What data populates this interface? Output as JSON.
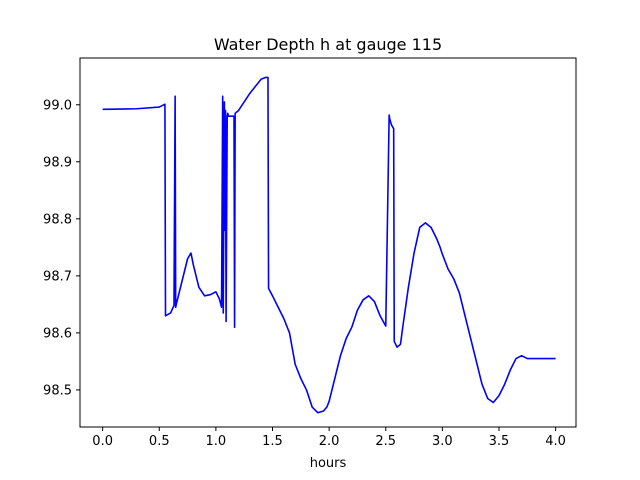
{
  "chart_data": {
    "type": "line",
    "title": "Water Depth h at gauge 115",
    "xlabel": "hours",
    "ylabel": "",
    "xlim": [
      -0.2,
      4.18
    ],
    "ylim": [
      98.435,
      99.082
    ],
    "x_ticks": [
      0.0,
      0.5,
      1.0,
      1.5,
      2.0,
      2.5,
      3.0,
      3.5,
      4.0
    ],
    "x_tick_labels": [
      "0.0",
      "0.5",
      "1.0",
      "1.5",
      "2.0",
      "2.5",
      "3.0",
      "3.5",
      "4.0"
    ],
    "y_ticks": [
      98.5,
      98.6,
      98.7,
      98.8,
      98.9,
      99.0
    ],
    "y_tick_labels": [
      "98.5",
      "98.6",
      "98.7",
      "98.8",
      "98.9",
      "99.0"
    ],
    "grid": false,
    "series": [
      {
        "color": "#0000ff",
        "x": [
          0.0,
          0.3,
          0.5,
          0.55,
          0.555,
          0.6,
          0.63,
          0.64,
          0.645,
          0.65,
          0.7,
          0.75,
          0.78,
          0.8,
          0.85,
          0.9,
          0.95,
          1.0,
          1.03,
          1.05,
          1.06,
          1.065,
          1.075,
          1.08,
          1.085,
          1.09,
          1.1,
          1.105,
          1.11,
          1.13,
          1.16,
          1.165,
          1.17,
          1.2,
          1.3,
          1.4,
          1.44,
          1.46,
          1.465,
          1.5,
          1.55,
          1.6,
          1.65,
          1.7,
          1.75,
          1.8,
          1.85,
          1.9,
          1.95,
          1.98,
          2.0,
          2.05,
          2.1,
          2.15,
          2.2,
          2.25,
          2.3,
          2.35,
          2.4,
          2.45,
          2.5,
          2.53,
          2.535,
          2.55,
          2.57,
          2.575,
          2.6,
          2.63,
          2.65,
          2.7,
          2.75,
          2.8,
          2.85,
          2.9,
          2.95,
          2.98,
          3.0,
          3.05,
          3.1,
          3.15,
          3.2,
          3.25,
          3.3,
          3.35,
          3.4,
          3.45,
          3.5,
          3.55,
          3.6,
          3.65,
          3.7,
          3.75,
          3.8,
          3.85,
          3.9,
          3.95,
          3.98,
          4.0
        ],
        "y": [
          98.992,
          98.993,
          98.996,
          99.001,
          98.63,
          98.635,
          98.648,
          99.015,
          98.645,
          98.65,
          98.69,
          98.73,
          98.74,
          98.72,
          98.68,
          98.665,
          98.667,
          98.672,
          98.66,
          98.645,
          99.015,
          98.635,
          99.005,
          98.78,
          98.99,
          98.62,
          98.98,
          98.985,
          98.98,
          98.98,
          98.98,
          98.61,
          98.985,
          98.99,
          99.02,
          99.045,
          99.048,
          99.048,
          98.678,
          98.665,
          98.645,
          98.625,
          98.6,
          98.545,
          98.52,
          98.5,
          98.47,
          98.46,
          98.463,
          98.47,
          98.48,
          98.52,
          98.56,
          98.59,
          98.61,
          98.64,
          98.658,
          98.665,
          98.655,
          98.63,
          98.612,
          98.982,
          98.975,
          98.965,
          98.958,
          98.585,
          98.575,
          98.58,
          98.61,
          98.68,
          98.74,
          98.785,
          98.793,
          98.785,
          98.765,
          98.75,
          98.738,
          98.712,
          98.695,
          98.67,
          98.63,
          98.59,
          98.55,
          98.51,
          98.485,
          98.478,
          98.49,
          98.51,
          98.535,
          98.555,
          98.56,
          98.555,
          98.555,
          98.555,
          98.555,
          98.555,
          98.555,
          98.555
        ]
      }
    ]
  }
}
